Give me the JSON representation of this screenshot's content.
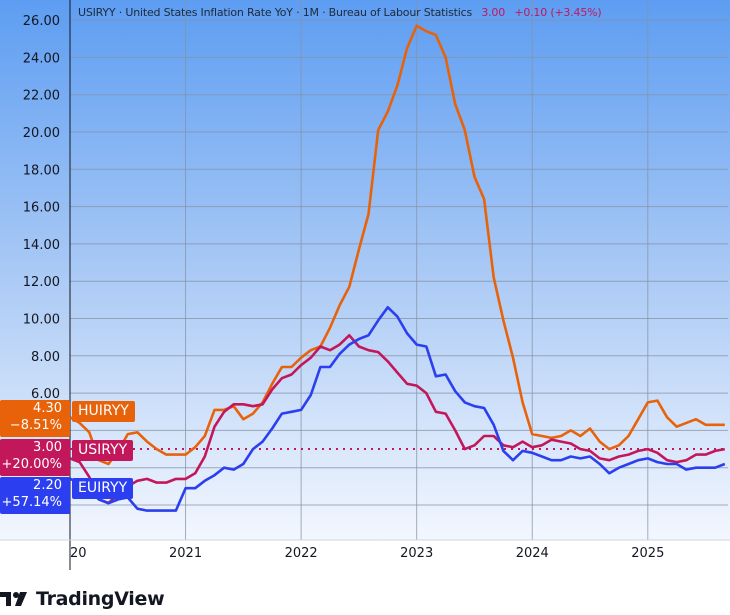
{
  "legend": {
    "text": "USIRYY · United States Inflation Rate YoY · 1M · Bureau of Labour Statistics",
    "value": "3.00",
    "change": "+0.10 (+3.45%)"
  },
  "badges": [
    {
      "symbol": "HUIRYY",
      "value": "4.30",
      "change": "−8.51%",
      "color": "#e8620a"
    },
    {
      "symbol": "USIRYY",
      "value": "3.00",
      "change": "+20.00%",
      "color": "#c2185b"
    },
    {
      "symbol": "EUIRYY",
      "value": "2.20",
      "change": "+57.14%",
      "color": "#2b3ff0"
    }
  ],
  "footer": {
    "brand": "TradingView",
    "logo_text": "TV"
  },
  "chart_data": {
    "type": "line",
    "x_start": "2020-01",
    "x_end": "2025-09",
    "frequency": "monthly",
    "x_tick_labels": [
      "20",
      "2021",
      "2022",
      "2023",
      "2024",
      "2025"
    ],
    "y_tick_labels": [
      "26.00",
      "24.00",
      "22.00",
      "20.00",
      "18.00",
      "16.00",
      "14.00",
      "12.00",
      "10.00",
      "8.00",
      "6.00"
    ],
    "ylim": [
      -1.9,
      26.8
    ],
    "grid": true,
    "reference_line": {
      "value": 3.0,
      "style": "dotted",
      "color": "#c2185b"
    },
    "series": [
      {
        "name": "HUIRYY",
        "color": "#e8620a",
        "values": [
          4.7,
          4.4,
          3.9,
          2.4,
          2.2,
          2.9,
          3.8,
          3.9,
          3.4,
          3.0,
          2.7,
          2.7,
          2.7,
          3.1,
          3.7,
          5.1,
          5.1,
          5.3,
          4.6,
          4.9,
          5.5,
          6.5,
          7.4,
          7.4,
          7.9,
          8.3,
          8.5,
          9.5,
          10.7,
          11.7,
          13.7,
          15.6,
          20.1,
          21.1,
          22.5,
          24.5,
          25.7,
          25.4,
          25.2,
          24.0,
          21.5,
          20.1,
          17.6,
          16.4,
          12.2,
          9.9,
          7.9,
          5.5,
          3.8,
          3.7,
          3.6,
          3.7,
          4.0,
          3.7,
          4.1,
          3.4,
          3.0,
          3.2,
          3.7,
          4.6,
          5.5,
          5.6,
          4.7,
          4.2,
          4.4,
          4.6,
          4.3,
          4.3,
          4.3
        ]
      },
      {
        "name": "USIRYY",
        "color": "#c2185b",
        "values": [
          2.5,
          2.3,
          1.5,
          0.3,
          0.1,
          0.6,
          1.0,
          1.3,
          1.4,
          1.2,
          1.2,
          1.4,
          1.4,
          1.7,
          2.6,
          4.2,
          5.0,
          5.4,
          5.4,
          5.3,
          5.4,
          6.2,
          6.8,
          7.0,
          7.5,
          7.9,
          8.5,
          8.3,
          8.6,
          9.1,
          8.5,
          8.3,
          8.2,
          7.7,
          7.1,
          6.5,
          6.4,
          6.0,
          5.0,
          4.9,
          4.0,
          3.0,
          3.2,
          3.7,
          3.7,
          3.2,
          3.1,
          3.4,
          3.1,
          3.2,
          3.5,
          3.4,
          3.3,
          3.0,
          2.9,
          2.5,
          2.4,
          2.6,
          2.7,
          2.9,
          3.0,
          2.8,
          2.4,
          2.3,
          2.4,
          2.7,
          2.7,
          2.9,
          3.0
        ]
      },
      {
        "name": "EUIRYY",
        "color": "#2b3ff0",
        "values": [
          1.4,
          1.2,
          0.7,
          0.3,
          0.1,
          0.3,
          0.4,
          -0.2,
          -0.3,
          -0.3,
          -0.3,
          -0.3,
          0.9,
          0.9,
          1.3,
          1.6,
          2.0,
          1.9,
          2.2,
          3.0,
          3.4,
          4.1,
          4.9,
          5.0,
          5.1,
          5.9,
          7.4,
          7.4,
          8.1,
          8.6,
          8.9,
          9.1,
          9.9,
          10.6,
          10.1,
          9.2,
          8.6,
          8.5,
          6.9,
          7.0,
          6.1,
          5.5,
          5.3,
          5.2,
          4.3,
          2.9,
          2.4,
          2.9,
          2.8,
          2.6,
          2.4,
          2.4,
          2.6,
          2.5,
          2.6,
          2.2,
          1.7,
          2.0,
          2.2,
          2.4,
          2.5,
          2.3,
          2.2,
          2.2,
          1.9,
          2.0,
          2.0,
          2.0,
          2.2
        ]
      }
    ]
  }
}
